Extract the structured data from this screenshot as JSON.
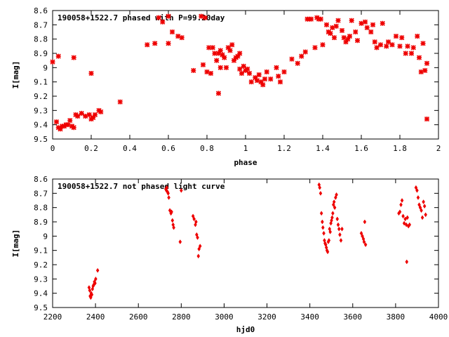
{
  "chart_data": [
    {
      "type": "scatter",
      "title": "190058+1522.7 phased with P=99.20day",
      "xlabel": "phase",
      "ylabel": "I[mag]",
      "xlim": [
        0,
        2
      ],
      "ylim": [
        8.6,
        9.5
      ],
      "y_inverted": true,
      "x_ticks": [
        "0",
        "0.2",
        "0.4",
        "0.6",
        "0.8",
        "1",
        "1.2",
        "1.4",
        "1.6",
        "1.8",
        "2"
      ],
      "y_ticks": [
        "8.6",
        "8.7",
        "8.8",
        "8.9",
        "9",
        "9.1",
        "9.2",
        "9.3",
        "9.4",
        "9.5"
      ],
      "marker": "cross",
      "point_color": "#ee0000",
      "points": [
        [
          0.0,
          8.96
        ],
        [
          0.02,
          9.38
        ],
        [
          0.03,
          9.42
        ],
        [
          0.03,
          8.92
        ],
        [
          0.04,
          9.43
        ],
        [
          0.05,
          9.41
        ],
        [
          0.06,
          9.41
        ],
        [
          0.07,
          9.4
        ],
        [
          0.08,
          9.4
        ],
        [
          0.09,
          9.37
        ],
        [
          0.1,
          9.41
        ],
        [
          0.11,
          9.42
        ],
        [
          0.11,
          8.93
        ],
        [
          0.12,
          9.33
        ],
        [
          0.13,
          9.34
        ],
        [
          0.15,
          9.32
        ],
        [
          0.17,
          9.34
        ],
        [
          0.19,
          9.33
        ],
        [
          0.2,
          9.36
        ],
        [
          0.2,
          9.04
        ],
        [
          0.21,
          9.35
        ],
        [
          0.22,
          9.33
        ],
        [
          0.24,
          9.3
        ],
        [
          0.25,
          9.31
        ],
        [
          0.35,
          9.24
        ],
        [
          0.49,
          8.84
        ],
        [
          0.53,
          8.83
        ],
        [
          0.55,
          8.65
        ],
        [
          0.57,
          8.68
        ],
        [
          0.6,
          8.64
        ],
        [
          0.6,
          8.83
        ],
        [
          0.62,
          8.75
        ],
        [
          0.65,
          8.78
        ],
        [
          0.67,
          8.79
        ],
        [
          0.73,
          9.02
        ],
        [
          0.77,
          8.64
        ],
        [
          0.78,
          8.98
        ],
        [
          0.79,
          8.65
        ],
        [
          0.8,
          9.03
        ],
        [
          0.81,
          8.86
        ],
        [
          0.82,
          9.04
        ],
        [
          0.83,
          8.86
        ],
        [
          0.84,
          8.9
        ],
        [
          0.85,
          8.95
        ],
        [
          0.86,
          9.18
        ],
        [
          0.86,
          8.9
        ],
        [
          0.87,
          9.0
        ],
        [
          0.87,
          8.88
        ],
        [
          0.88,
          8.91
        ],
        [
          0.89,
          8.93
        ],
        [
          0.9,
          9.0
        ],
        [
          0.91,
          8.86
        ],
        [
          0.92,
          8.88
        ],
        [
          0.93,
          8.84
        ],
        [
          0.94,
          8.95
        ],
        [
          0.95,
          8.93
        ],
        [
          0.96,
          8.92
        ],
        [
          0.97,
          8.9
        ],
        [
          0.97,
          9.01
        ],
        [
          0.98,
          9.04
        ],
        [
          0.99,
          8.99
        ],
        [
          1.0,
          9.02
        ],
        [
          1.01,
          9.01
        ],
        [
          1.02,
          9.04
        ],
        [
          1.03,
          9.1
        ],
        [
          1.05,
          9.07
        ],
        [
          1.06,
          9.09
        ],
        [
          1.07,
          9.05
        ],
        [
          1.08,
          9.1
        ],
        [
          1.09,
          9.12
        ],
        [
          1.1,
          9.08
        ],
        [
          1.11,
          9.03
        ],
        [
          1.13,
          9.08
        ],
        [
          1.16,
          9.0
        ],
        [
          1.17,
          9.06
        ],
        [
          1.18,
          9.1
        ],
        [
          1.2,
          9.03
        ],
        [
          1.24,
          8.94
        ],
        [
          1.27,
          8.97
        ],
        [
          1.29,
          8.92
        ],
        [
          1.31,
          8.89
        ],
        [
          1.32,
          8.66
        ],
        [
          1.33,
          8.66
        ],
        [
          1.34,
          8.66
        ],
        [
          1.36,
          8.86
        ],
        [
          1.37,
          8.65
        ],
        [
          1.38,
          8.66
        ],
        [
          1.39,
          8.66
        ],
        [
          1.4,
          8.84
        ],
        [
          1.42,
          8.7
        ],
        [
          1.43,
          8.75
        ],
        [
          1.44,
          8.76
        ],
        [
          1.45,
          8.72
        ],
        [
          1.46,
          8.79
        ],
        [
          1.47,
          8.71
        ],
        [
          1.48,
          8.67
        ],
        [
          1.5,
          8.74
        ],
        [
          1.51,
          8.79
        ],
        [
          1.52,
          8.82
        ],
        [
          1.53,
          8.8
        ],
        [
          1.54,
          8.78
        ],
        [
          1.55,
          8.67
        ],
        [
          1.57,
          8.75
        ],
        [
          1.58,
          8.81
        ],
        [
          1.6,
          8.69
        ],
        [
          1.62,
          8.68
        ],
        [
          1.63,
          8.72
        ],
        [
          1.65,
          8.75
        ],
        [
          1.66,
          8.7
        ],
        [
          1.67,
          8.82
        ],
        [
          1.68,
          8.86
        ],
        [
          1.7,
          8.84
        ],
        [
          1.71,
          8.69
        ],
        [
          1.73,
          8.85
        ],
        [
          1.74,
          8.82
        ],
        [
          1.76,
          8.84
        ],
        [
          1.78,
          8.78
        ],
        [
          1.8,
          8.85
        ],
        [
          1.81,
          8.79
        ],
        [
          1.83,
          8.9
        ],
        [
          1.84,
          8.85
        ],
        [
          1.86,
          8.9
        ],
        [
          1.87,
          8.86
        ],
        [
          1.89,
          8.78
        ],
        [
          1.9,
          8.93
        ],
        [
          1.91,
          9.03
        ],
        [
          1.92,
          8.83
        ],
        [
          1.93,
          9.02
        ],
        [
          1.94,
          8.97
        ],
        [
          1.94,
          9.36
        ]
      ]
    },
    {
      "type": "scatter",
      "title": "190058+1522.7 not phased light curve",
      "xlabel": "hjd0",
      "ylabel": "I[mag]",
      "xlim": [
        2200,
        4000
      ],
      "ylim": [
        8.6,
        9.5
      ],
      "y_inverted": true,
      "x_ticks": [
        "2200",
        "2400",
        "2600",
        "2800",
        "3000",
        "3200",
        "3400",
        "3600",
        "3800",
        "4000"
      ],
      "y_ticks": [
        "8.6",
        "8.7",
        "8.8",
        "8.9",
        "9",
        "9.1",
        "9.2",
        "9.3",
        "9.4",
        "9.5"
      ],
      "marker": "diamond",
      "point_color": "#ee0000",
      "points": [
        [
          2370,
          9.36
        ],
        [
          2373,
          9.38
        ],
        [
          2375,
          9.42
        ],
        [
          2378,
          9.43
        ],
        [
          2380,
          9.4
        ],
        [
          2383,
          9.41
        ],
        [
          2386,
          9.37
        ],
        [
          2389,
          9.35
        ],
        [
          2392,
          9.34
        ],
        [
          2395,
          9.32
        ],
        [
          2398,
          9.33
        ],
        [
          2401,
          9.3
        ],
        [
          2410,
          9.24
        ],
        [
          2728,
          8.67
        ],
        [
          2731,
          8.68
        ],
        [
          2733,
          8.66
        ],
        [
          2736,
          8.69
        ],
        [
          2739,
          8.7
        ],
        [
          2742,
          8.73
        ],
        [
          2747,
          8.82
        ],
        [
          2752,
          8.84
        ],
        [
          2755,
          8.83
        ],
        [
          2759,
          8.89
        ],
        [
          2762,
          8.92
        ],
        [
          2765,
          8.94
        ],
        [
          2795,
          9.04
        ],
        [
          2800,
          8.68
        ],
        [
          2855,
          8.86
        ],
        [
          2860,
          8.88
        ],
        [
          2866,
          8.92
        ],
        [
          2869,
          8.9
        ],
        [
          2872,
          8.99
        ],
        [
          2876,
          9.01
        ],
        [
          2880,
          9.14
        ],
        [
          2883,
          9.09
        ],
        [
          2888,
          9.07
        ],
        [
          3443,
          8.64
        ],
        [
          3446,
          8.66
        ],
        [
          3450,
          8.7
        ],
        [
          3454,
          8.84
        ],
        [
          3458,
          8.9
        ],
        [
          3461,
          8.94
        ],
        [
          3465,
          8.98
        ],
        [
          3468,
          9.03
        ],
        [
          3471,
          9.05
        ],
        [
          3474,
          9.06
        ],
        [
          3477,
          9.08
        ],
        [
          3480,
          9.1
        ],
        [
          3483,
          9.11
        ],
        [
          3486,
          9.04
        ],
        [
          3489,
          9.03
        ],
        [
          3492,
          8.95
        ],
        [
          3495,
          8.97
        ],
        [
          3498,
          8.91
        ],
        [
          3501,
          8.89
        ],
        [
          3504,
          8.87
        ],
        [
          3507,
          8.84
        ],
        [
          3510,
          8.78
        ],
        [
          3513,
          8.76
        ],
        [
          3516,
          8.8
        ],
        [
          3520,
          8.73
        ],
        [
          3524,
          8.71
        ],
        [
          3528,
          8.88
        ],
        [
          3532,
          8.92
        ],
        [
          3536,
          8.95
        ],
        [
          3540,
          8.99
        ],
        [
          3545,
          9.03
        ],
        [
          3550,
          8.95
        ],
        [
          3640,
          8.98
        ],
        [
          3645,
          9.0
        ],
        [
          3650,
          9.02
        ],
        [
          3653,
          9.04
        ],
        [
          3656,
          8.9
        ],
        [
          3660,
          9.06
        ],
        [
          3815,
          8.84
        ],
        [
          3820,
          8.83
        ],
        [
          3825,
          8.78
        ],
        [
          3830,
          8.75
        ],
        [
          3835,
          8.86
        ],
        [
          3840,
          8.91
        ],
        [
          3845,
          8.88
        ],
        [
          3850,
          8.92
        ],
        [
          3852,
          9.18
        ],
        [
          3855,
          8.87
        ],
        [
          3860,
          8.93
        ],
        [
          3865,
          8.92
        ],
        [
          3895,
          8.66
        ],
        [
          3900,
          8.68
        ],
        [
          3905,
          8.73
        ],
        [
          3910,
          8.78
        ],
        [
          3915,
          8.8
        ],
        [
          3920,
          8.82
        ],
        [
          3925,
          8.87
        ],
        [
          3930,
          8.76
        ],
        [
          3935,
          8.79
        ],
        [
          3940,
          8.85
        ]
      ]
    }
  ]
}
